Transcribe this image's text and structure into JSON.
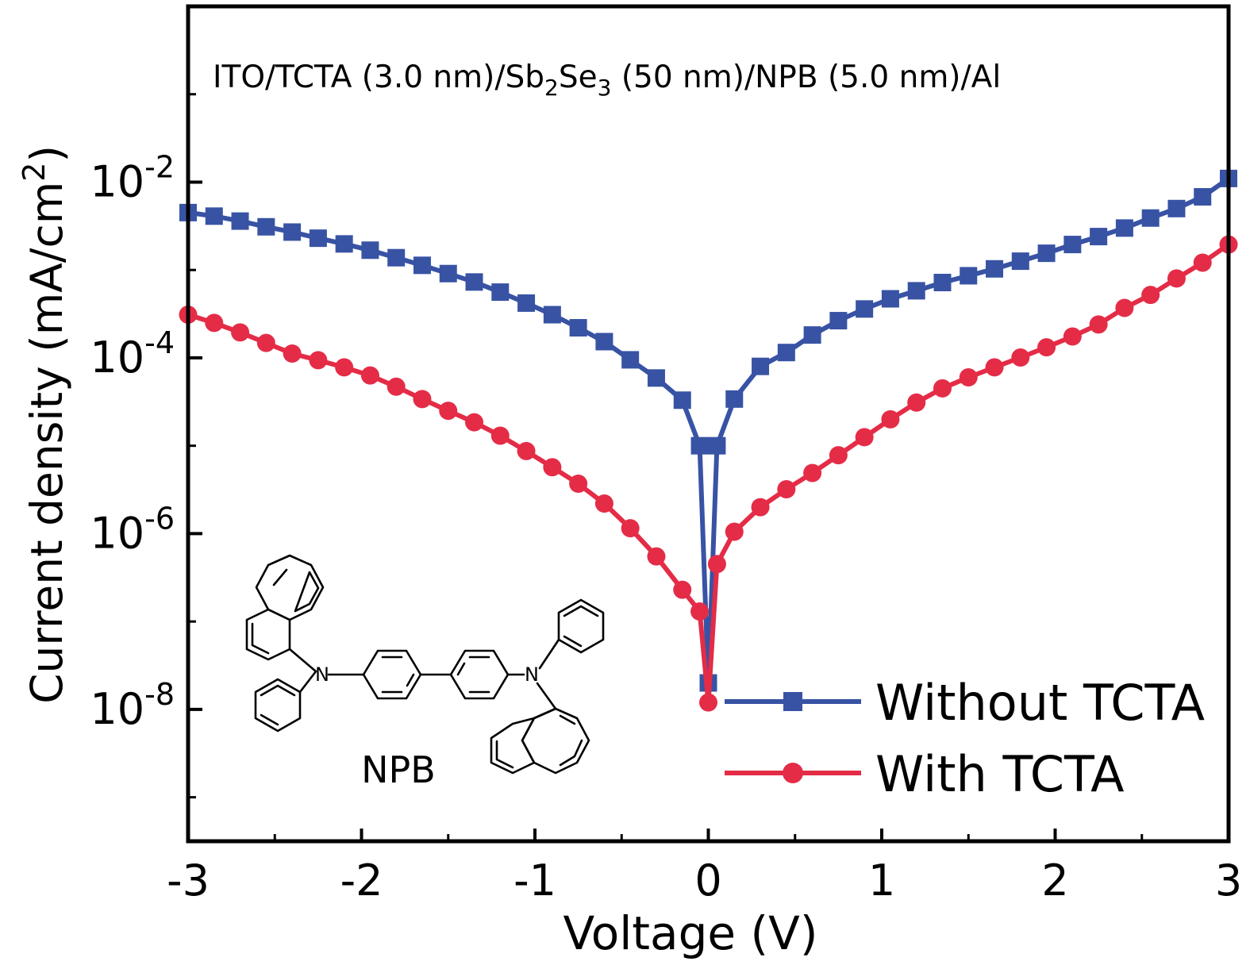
{
  "chart_data": {
    "type": "line",
    "title": "",
    "annotation": {
      "parts": [
        "ITO/TCTA (3.0 nm)/Sb",
        "2",
        "Se",
        "3",
        " (50 nm)/NPB (5.0 nm)/Al"
      ]
    },
    "xlabel": "Voltage (V)",
    "ylabel": "Current density (mA/cm",
    "ylabel_sup": "2",
    "ylabel_close": ")",
    "xlim": [
      -3,
      3
    ],
    "ylim": [
      3.16e-10,
      1.0
    ],
    "yscale": "log",
    "x_ticks": [
      "-3",
      "-2",
      "-1",
      "0",
      "1",
      "2",
      "3"
    ],
    "y_ticks": [
      {
        "base": "10",
        "exp": "-2"
      },
      {
        "base": "10",
        "exp": "-4"
      },
      {
        "base": "10",
        "exp": "-6"
      },
      {
        "base": "10",
        "exp": "-8"
      }
    ],
    "legend": {
      "placement": "bottom-right"
    },
    "inset_label": "NPB",
    "inset_atom": "N",
    "x": [
      -3.0,
      -2.85,
      -2.7,
      -2.55,
      -2.4,
      -2.25,
      -2.1,
      -1.95,
      -1.8,
      -1.65,
      -1.5,
      -1.35,
      -1.2,
      -1.05,
      -0.9,
      -0.75,
      -0.6,
      -0.45,
      -0.3,
      -0.15,
      -0.05,
      0.0,
      0.05,
      0.15,
      0.3,
      0.45,
      0.6,
      0.75,
      0.9,
      1.05,
      1.2,
      1.35,
      1.5,
      1.65,
      1.8,
      1.95,
      2.1,
      2.25,
      2.4,
      2.55,
      2.7,
      2.85,
      3.0
    ],
    "series": [
      {
        "name": "Without TCTA",
        "color": "#3853a4",
        "marker": "square",
        "values": [
          0.0045,
          0.0041,
          0.0036,
          0.0031,
          0.0027,
          0.0023,
          0.00198,
          0.00168,
          0.00138,
          0.00113,
          0.00091,
          0.00073,
          0.00056,
          0.00042,
          0.00031,
          0.00022,
          0.000153,
          9.5e-05,
          5.9e-05,
          3.3e-05,
          1e-05,
          2e-08,
          1e-05,
          3.4e-05,
          8e-05,
          0.000115,
          0.000182,
          0.000265,
          0.00036,
          0.00047,
          0.00058,
          0.00072,
          0.00086,
          0.00103,
          0.00126,
          0.00155,
          0.00195,
          0.0024,
          0.003,
          0.0039,
          0.005,
          0.0068,
          0.011
        ]
      },
      {
        "name": "With TCTA",
        "color": "#e42c47",
        "marker": "circle",
        "values": [
          0.00031,
          0.00025,
          0.000195,
          0.000148,
          0.000112,
          9.4e-05,
          7.8e-05,
          6.3e-05,
          4.7e-05,
          3.4e-05,
          2.5e-05,
          1.85e-05,
          1.3e-05,
          8.7e-06,
          5.7e-06,
          3.7e-06,
          2.2e-06,
          1.15e-06,
          5.5e-07,
          2.3e-07,
          1.3e-07,
          1.2e-08,
          4.5e-07,
          1.05e-06,
          2e-06,
          3.2e-06,
          4.9e-06,
          7.8e-06,
          1.25e-05,
          2e-05,
          3.1e-05,
          4.5e-05,
          6e-05,
          7.8e-05,
          0.000101,
          0.000132,
          0.000175,
          0.00024,
          0.00037,
          0.00052,
          0.0008,
          0.00121,
          0.00195
        ]
      }
    ]
  }
}
